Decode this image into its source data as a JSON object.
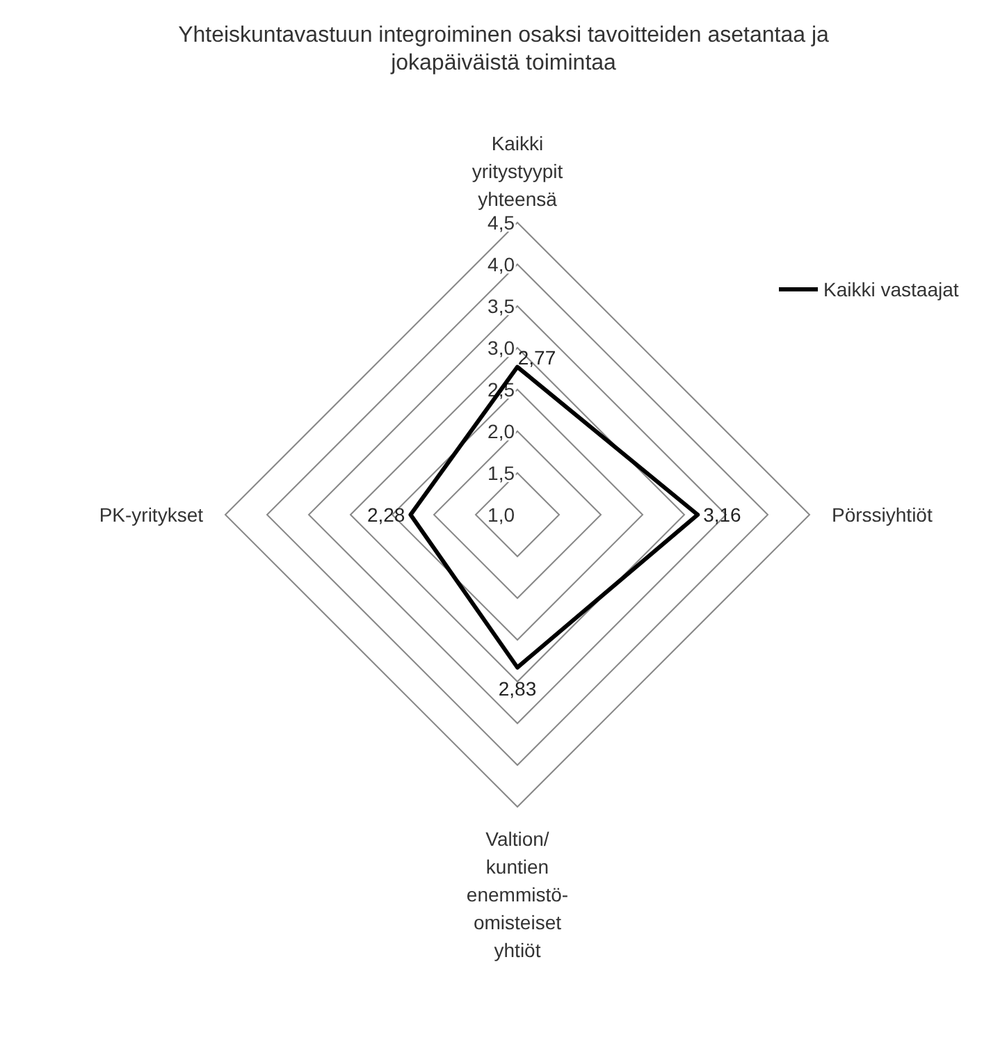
{
  "chart_data": {
    "type": "radar",
    "title": "Yhteiskuntavastuun integroiminen osaksi tavoitteiden asetantaa ja jokapäiväistä toimintaa",
    "categories": [
      "Kaikki yritystyypit yhteensä",
      "Pörssiyhtiöt",
      "Valtion/kuntien enemmistö-omisteiset yhtiöt",
      "PK-yritykset"
    ],
    "series": [
      {
        "name": "Kaikki vastaajat",
        "color": "#000000",
        "values": [
          2.77,
          3.16,
          2.83,
          2.28
        ],
        "value_labels": [
          "2,77",
          "3,16",
          "2,83",
          "2,28"
        ]
      }
    ],
    "ylim": [
      1,
      4.5
    ],
    "yticks": [
      {
        "value": 1,
        "label": "1,0"
      },
      {
        "value": 1.5,
        "label": "1,5"
      },
      {
        "value": 2,
        "label": "2,0"
      },
      {
        "value": 2.5,
        "label": "2,5"
      },
      {
        "value": 3,
        "label": "3,0"
      },
      {
        "value": 3.5,
        "label": "3,5"
      },
      {
        "value": 4,
        "label": "4,0"
      },
      {
        "value": 4.5,
        "label": "4,5"
      }
    ],
    "grid": true,
    "legend": "top right"
  }
}
